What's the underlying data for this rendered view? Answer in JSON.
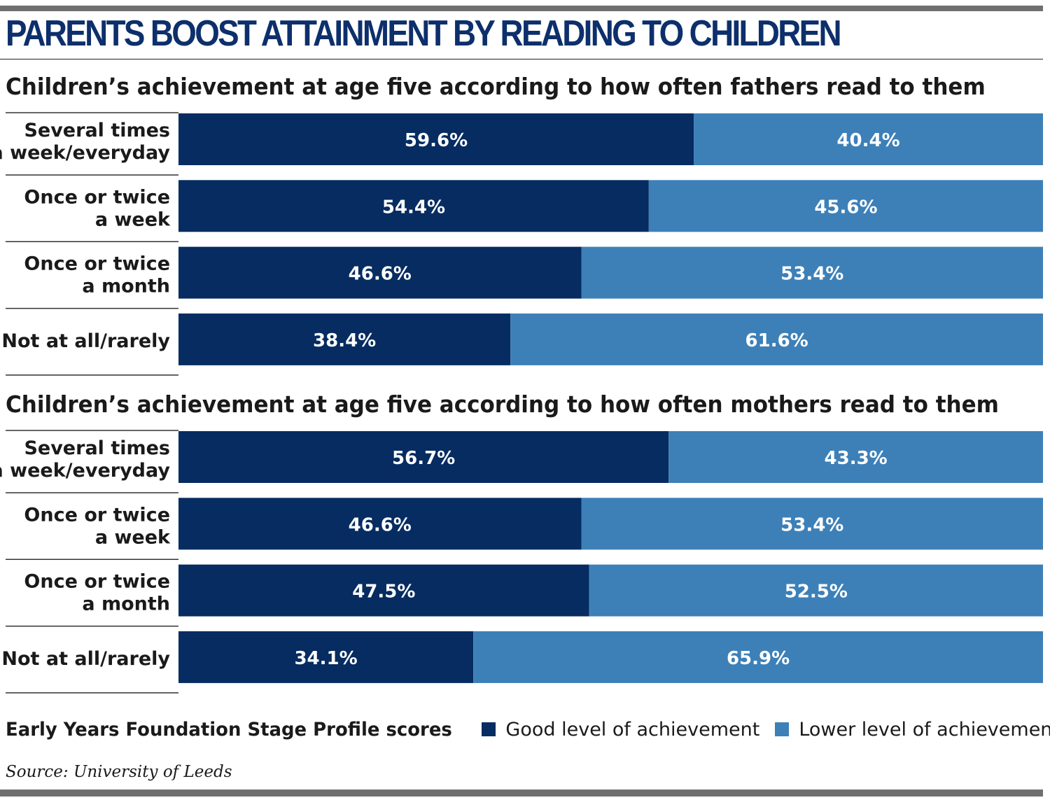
{
  "title": "PARENTS BOOST ATTAINMENT BY READING TO CHILDREN",
  "colors": {
    "good": "#062c61",
    "lower": "#3d80b8",
    "title": "#0d2f6b"
  },
  "chart_data": [
    {
      "type": "bar",
      "stacked": true,
      "orientation": "horizontal",
      "title": "Children’s achievement at age five according to how often fathers read to them",
      "categories": [
        [
          "Several times",
          "a week/everyday"
        ],
        [
          "Once or twice",
          "a week"
        ],
        [
          "Once or twice",
          "a month"
        ],
        [
          "Not at all/rarely"
        ]
      ],
      "series": [
        {
          "name": "Good level of achievement",
          "values": [
            59.6,
            54.4,
            46.6,
            38.4
          ],
          "labels": [
            "59.6%",
            "54.4%",
            "46.6%",
            "38.4%"
          ]
        },
        {
          "name": "Lower level of achievement",
          "values": [
            40.4,
            45.6,
            53.4,
            61.6
          ],
          "labels": [
            "40.4%",
            "45.6%",
            "53.4%",
            "61.6%"
          ]
        }
      ],
      "xlim": [
        0,
        100
      ]
    },
    {
      "type": "bar",
      "stacked": true,
      "orientation": "horizontal",
      "title": "Children’s achievement at age five according to how often mothers read to them",
      "categories": [
        [
          "Several times",
          "a week/everyday"
        ],
        [
          "Once or twice",
          "a week"
        ],
        [
          "Once or twice",
          "a month"
        ],
        [
          "Not at all/rarely"
        ]
      ],
      "series": [
        {
          "name": "Good level of achievement",
          "values": [
            56.7,
            46.6,
            47.5,
            34.1
          ],
          "labels": [
            "56.7%",
            "46.6%",
            "47.5%",
            "34.1%"
          ]
        },
        {
          "name": "Lower level of achievement",
          "values": [
            43.3,
            53.4,
            52.5,
            65.9
          ],
          "labels": [
            "43.3%",
            "53.4%",
            "52.5%",
            "65.9%"
          ]
        }
      ],
      "xlim": [
        0,
        100
      ]
    }
  ],
  "legend": {
    "title": "Early Years Foundation Stage Profile scores",
    "items": [
      "Good level of achievement",
      "Lower level of achievement"
    ]
  },
  "source": "Source: University of Leeds"
}
